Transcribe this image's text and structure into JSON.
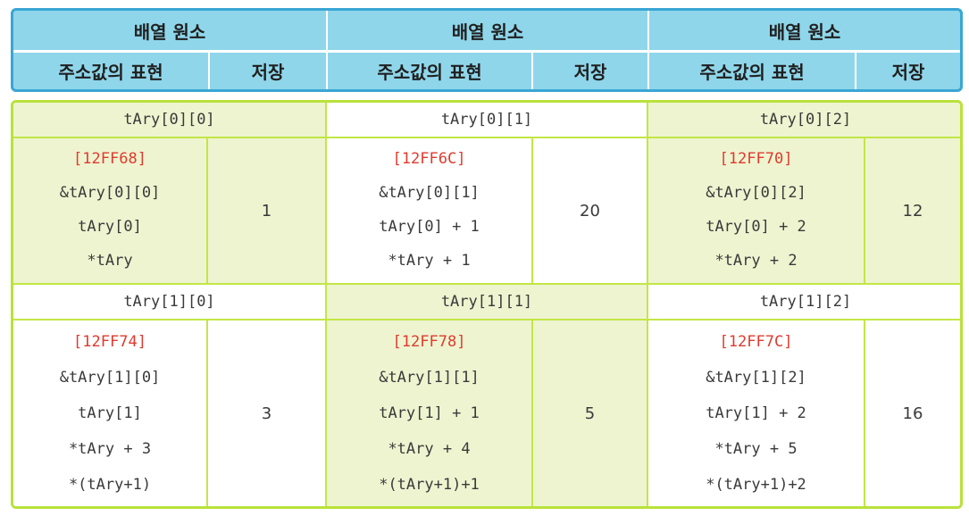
{
  "header": {
    "group_title": "배열 원소",
    "address_col": "주소값의 표현",
    "storage_col": "저장"
  },
  "rows": [
    {
      "cells": [
        {
          "name": "tAry[0][0]",
          "address": "[12FF68]",
          "exprs": [
            "&tAry[0][0]",
            "tAry[0]",
            "*tAry"
          ],
          "value": "1"
        },
        {
          "name": "tAry[0][1]",
          "address": "[12FF6C]",
          "exprs": [
            "&tAry[0][1]",
            "tAry[0] + 1",
            "*tAry + 1"
          ],
          "value": "20"
        },
        {
          "name": "tAry[0][2]",
          "address": "[12FF70]",
          "exprs": [
            "&tAry[0][2]",
            "tAry[0] + 2",
            "*tAry + 2"
          ],
          "value": "12"
        }
      ]
    },
    {
      "cells": [
        {
          "name": "tAry[1][0]",
          "address": "[12FF74]",
          "exprs": [
            "&tAry[1][0]",
            "tAry[1]",
            "*tAry + 3",
            "*(tAry+1)"
          ],
          "value": "3"
        },
        {
          "name": "tAry[1][1]",
          "address": "[12FF78]",
          "exprs": [
            "&tAry[1][1]",
            "tAry[1] + 1",
            "*tAry + 4",
            "*(tAry+1)+1"
          ],
          "value": "5"
        },
        {
          "name": "tAry[1][2]",
          "address": "[12FF7C]",
          "exprs": [
            "&tAry[1][2]",
            "tAry[1] + 2",
            "*tAry + 5",
            "*(tAry+1)+2"
          ],
          "value": "16"
        }
      ]
    }
  ],
  "colors": {
    "header_bg": "#8fd6ea",
    "header_border": "#3aa6d4",
    "table_border": "#b9e23a",
    "shaded_bg": "#eef4d0",
    "address_red": "#e03a2e"
  }
}
